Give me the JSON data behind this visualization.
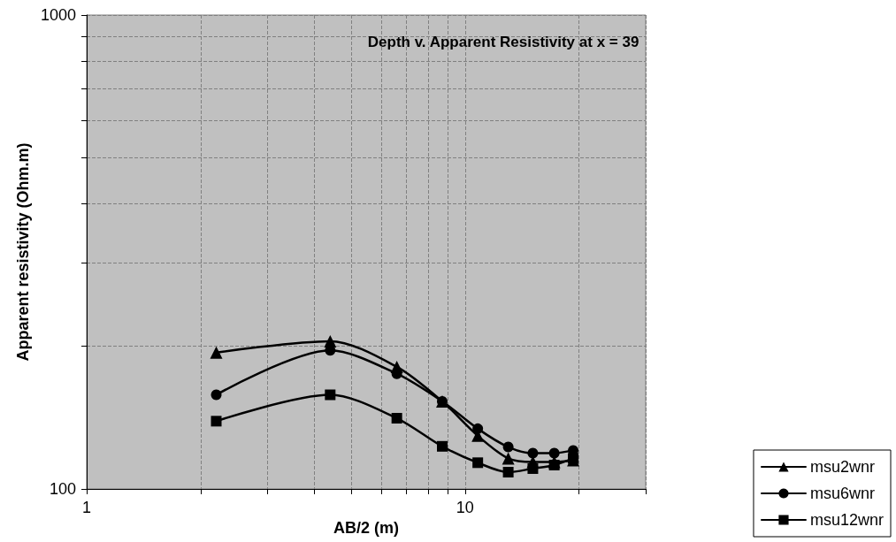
{
  "chart_data": {
    "type": "line",
    "title": "Depth v. Apparent Resistivity at x = 39",
    "xlabel": "AB/2 (m)",
    "ylabel": "Apparent resistivity (Ohm.m)",
    "x": [
      2.2,
      4.4,
      6.6,
      8.7,
      10.8,
      13,
      15.1,
      17.2,
      19.3
    ],
    "series": [
      {
        "name": "msu2wnr",
        "color": "#000000",
        "marker": "triangle",
        "values": [
          194,
          205,
          181,
          153,
          129.5,
          116,
          114,
          114,
          115
        ]
      },
      {
        "name": "msu6wnr",
        "color": "#000000",
        "marker": "circle",
        "values": [
          158,
          196,
          175,
          153,
          134,
          122.6,
          119,
          119,
          120.6
        ]
      },
      {
        "name": "msu12wnr",
        "color": "#000000",
        "marker": "square",
        "values": [
          139,
          158,
          141,
          123,
          113.6,
          108.5,
          110.4,
          112.3,
          116
        ]
      }
    ],
    "log": "xy",
    "xlim": [
      1,
      30
    ],
    "ylim": [
      100,
      1000
    ],
    "xticks": [
      1,
      {
        "value": 2,
        "label": null
      },
      {
        "value": 3,
        "label": null
      },
      {
        "value": 4,
        "label": null
      },
      {
        "value": 5,
        "label": null
      },
      {
        "value": 6,
        "label": null
      },
      {
        "value": 7,
        "label": null
      },
      {
        "value": 8,
        "label": null
      },
      {
        "value": 9,
        "label": null
      },
      10,
      {
        "value": 20,
        "label": null
      },
      {
        "value": 30,
        "label": null
      }
    ],
    "yticks": [
      100,
      {
        "value": 200,
        "label": null
      },
      {
        "value": 300,
        "label": null
      },
      {
        "value": 400,
        "label": null
      },
      {
        "value": 500,
        "label": null
      },
      {
        "value": 600,
        "label": null
      },
      {
        "value": 700,
        "label": null
      },
      {
        "value": 800,
        "label": null
      },
      {
        "value": 900,
        "label": null
      },
      1000
    ],
    "grid": true,
    "legend": "bottom right",
    "line_style": "solid"
  }
}
